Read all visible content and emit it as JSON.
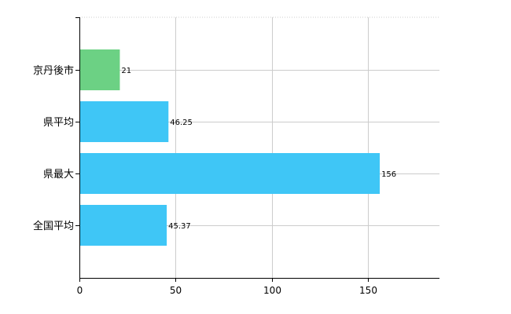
{
  "chart_data": {
    "type": "bar",
    "orientation": "horizontal",
    "categories": [
      "京丹後市",
      "県平均",
      "県最大",
      "全国平均"
    ],
    "values": [
      21,
      46.25,
      156,
      45.37
    ],
    "data_labels": [
      "21",
      "46.25",
      "156",
      "45.37"
    ],
    "bar_colors": [
      "#6cd184",
      "#3fc6f6",
      "#3fc6f6",
      "#3fc6f6"
    ],
    "xlim": [
      0,
      187
    ],
    "x_ticks": [
      0,
      50,
      100,
      150
    ],
    "x_tick_labels": [
      "0",
      "50",
      "100",
      "150"
    ],
    "grid": true,
    "title": "",
    "xlabel": "",
    "ylabel": ""
  }
}
